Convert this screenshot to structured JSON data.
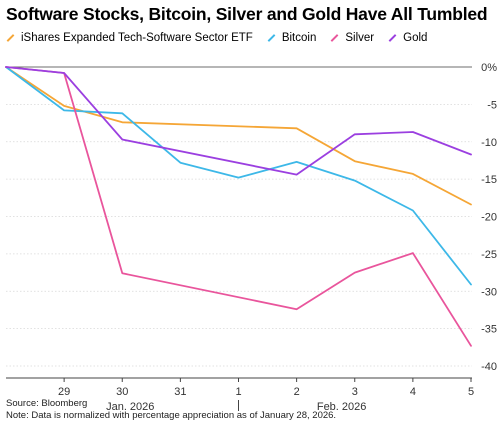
{
  "chart_data": {
    "type": "line",
    "title": "Software Stocks, Bitcoin, Silver and Gold Have All Tumbled",
    "x": [
      "2026-01-28",
      "2026-01-29",
      "2026-01-30",
      "2026-01-31",
      "2026-02-01",
      "2026-02-02",
      "2026-02-03",
      "2026-02-04",
      "2026-02-05"
    ],
    "x_tick_labels": [
      "29",
      "30",
      "31",
      "1",
      "2",
      "3",
      "4",
      "5"
    ],
    "x_group_labels": [
      "Jan. 2026",
      "Feb. 2026"
    ],
    "y_tick_labels": [
      "0%",
      "-5",
      "-10",
      "-15",
      "-20",
      "-25",
      "-30",
      "-35",
      "-40"
    ],
    "ylim": [
      -40,
      0
    ],
    "y_axis_position": "right",
    "legend_position": "top",
    "grid": "horizontal",
    "series": [
      {
        "name": "iShares Expanded Tech-Software Sector ETF",
        "color": "#f5a636",
        "points": [
          [
            "2026-01-28",
            0
          ],
          [
            "2026-01-29",
            -5.2
          ],
          [
            "2026-01-30",
            -7.4
          ],
          [
            "2026-02-02",
            -8.2
          ],
          [
            "2026-02-03",
            -12.6
          ],
          [
            "2026-02-04",
            -14.3
          ],
          [
            "2026-02-05",
            -18.4
          ]
        ]
      },
      {
        "name": "Bitcoin",
        "color": "#3db8e8",
        "points": [
          [
            "2026-01-28",
            0
          ],
          [
            "2026-01-29",
            -5.8
          ],
          [
            "2026-01-30",
            -6.2
          ],
          [
            "2026-01-31",
            -12.8
          ],
          [
            "2026-02-01",
            -14.8
          ],
          [
            "2026-02-02",
            -12.7
          ],
          [
            "2026-02-03",
            -15.2
          ],
          [
            "2026-02-04",
            -19.2
          ],
          [
            "2026-02-05",
            -29.1
          ]
        ]
      },
      {
        "name": "Silver",
        "color": "#e9559c",
        "points": [
          [
            "2026-01-28",
            0
          ],
          [
            "2026-01-29",
            -0.8
          ],
          [
            "2026-01-30",
            -27.6
          ],
          [
            "2026-02-02",
            -32.4
          ],
          [
            "2026-02-03",
            -27.5
          ],
          [
            "2026-02-04",
            -24.9
          ],
          [
            "2026-02-05",
            -37.3
          ]
        ]
      },
      {
        "name": "Gold",
        "color": "#9b3fe0",
        "points": [
          [
            "2026-01-28",
            0
          ],
          [
            "2026-01-29",
            -0.8
          ],
          [
            "2026-01-30",
            -9.7
          ],
          [
            "2026-02-02",
            -14.4
          ],
          [
            "2026-02-03",
            -9.0
          ],
          [
            "2026-02-04",
            -8.7
          ],
          [
            "2026-02-05",
            -11.7
          ]
        ]
      }
    ]
  },
  "footer": {
    "source": "Source: Bloomberg",
    "note": "Note: Data is normalized with percentage appreciation as of January 28, 2026."
  }
}
